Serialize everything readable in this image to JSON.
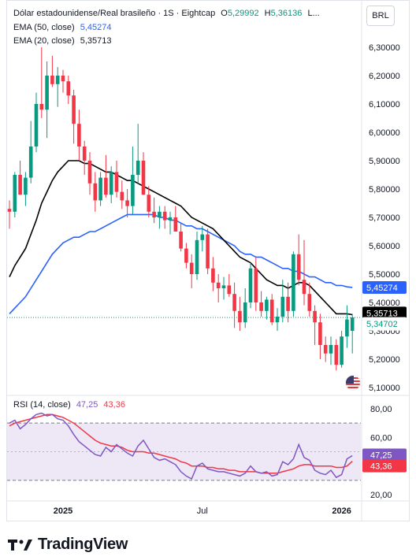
{
  "header": {
    "symbol_title": "Dólar estadounidense/Real brasileño · 1S · Eightcap",
    "open_label": "O",
    "open_value": "5,29992",
    "high_label": "H",
    "high_value": "5,36136",
    "low_label": "L..."
  },
  "currency_button": "BRL",
  "legend": {
    "ema50_label": "EMA (50, close)",
    "ema50_value": "5,45274",
    "ema20_label": "EMA (20, close)",
    "ema20_value": "5,35713",
    "rsi_label": "RSI (14, close)",
    "rsi_value": "47,25",
    "rsi_ma_value": "43,36"
  },
  "price_axis": {
    "ticks": [
      "6,30000",
      "6,20000",
      "6,10000",
      "6,00000",
      "5,90000",
      "5,80000",
      "5,70000",
      "5,60000",
      "5,50000",
      "5,40000",
      "5,30000",
      "5,20000",
      "5,10000"
    ],
    "tick_values": [
      6.3,
      6.2,
      6.1,
      6.0,
      5.9,
      5.8,
      5.7,
      5.6,
      5.5,
      5.4,
      5.3,
      5.2,
      5.1
    ],
    "labels": [
      {
        "text": "5,45274",
        "value": 5.45274,
        "color": "#2962ff",
        "text_color": "#ffffff"
      },
      {
        "text": "5,35713",
        "value": 5.35713,
        "color": "#000000",
        "text_color": "#ffffff"
      },
      {
        "text": "5,34702",
        "value": 5.34702,
        "color": "#ffffff",
        "text_color": "#089981"
      }
    ]
  },
  "rsi_axis": {
    "ticks": [
      "80,00",
      "60,00",
      "20,00"
    ],
    "tick_values": [
      80,
      60,
      20
    ],
    "labels": [
      {
        "text": "47,25",
        "value": 47.25,
        "color": "#7e57c2"
      },
      {
        "text": "43,36",
        "value": 43.36,
        "color": "#f23645"
      }
    ]
  },
  "time_axis": {
    "labels": [
      {
        "text": "2025",
        "index": 10,
        "bold": true
      },
      {
        "text": "Jul",
        "index": 36,
        "bold": false
      },
      {
        "text": "2026",
        "index": 62,
        "bold": true
      }
    ]
  },
  "colors": {
    "up": "#089981",
    "down": "#f23645",
    "ema50": "#2962ff",
    "ema20": "#000000",
    "rsi": "#7e57c2",
    "rsi_ma": "#f23645",
    "rsi_band": "#ede7f6"
  },
  "chart_data": {
    "type": "candlestick",
    "title": "Dólar estadounidense/Real brasileño · 1S · Eightcap",
    "ylim": [
      5.1,
      6.35
    ],
    "rsi_ylim": [
      15,
      85
    ],
    "rsi_bands": [
      70,
      30
    ],
    "candles": [
      {
        "o": 5.73,
        "h": 5.76,
        "l": 5.66,
        "c": 5.72
      },
      {
        "o": 5.72,
        "h": 5.86,
        "l": 5.7,
        "c": 5.85
      },
      {
        "o": 5.85,
        "h": 5.9,
        "l": 5.78,
        "c": 5.78
      },
      {
        "o": 5.78,
        "h": 5.86,
        "l": 5.74,
        "c": 5.84
      },
      {
        "o": 5.84,
        "h": 6.04,
        "l": 5.82,
        "c": 5.95
      },
      {
        "o": 5.95,
        "h": 6.14,
        "l": 5.93,
        "c": 6.1
      },
      {
        "o": 6.1,
        "h": 6.3,
        "l": 6.05,
        "c": 6.08
      },
      {
        "o": 6.08,
        "h": 6.25,
        "l": 5.98,
        "c": 6.2
      },
      {
        "o": 6.2,
        "h": 6.27,
        "l": 6.16,
        "c": 6.17
      },
      {
        "o": 6.17,
        "h": 6.23,
        "l": 6.09,
        "c": 6.2
      },
      {
        "o": 6.2,
        "h": 6.22,
        "l": 6.14,
        "c": 6.18
      },
      {
        "o": 6.18,
        "h": 6.2,
        "l": 6.1,
        "c": 6.13
      },
      {
        "o": 6.13,
        "h": 6.15,
        "l": 5.96,
        "c": 6.03
      },
      {
        "o": 6.03,
        "h": 6.08,
        "l": 5.9,
        "c": 5.95
      },
      {
        "o": 5.95,
        "h": 5.97,
        "l": 5.85,
        "c": 5.9
      },
      {
        "o": 5.9,
        "h": 5.93,
        "l": 5.78,
        "c": 5.82
      },
      {
        "o": 5.82,
        "h": 5.86,
        "l": 5.72,
        "c": 5.76
      },
      {
        "o": 5.76,
        "h": 5.86,
        "l": 5.74,
        "c": 5.84
      },
      {
        "o": 5.84,
        "h": 5.92,
        "l": 5.77,
        "c": 5.78
      },
      {
        "o": 5.78,
        "h": 5.88,
        "l": 5.75,
        "c": 5.86
      },
      {
        "o": 5.86,
        "h": 5.9,
        "l": 5.77,
        "c": 5.79
      },
      {
        "o": 5.79,
        "h": 5.83,
        "l": 5.73,
        "c": 5.76
      },
      {
        "o": 5.76,
        "h": 5.8,
        "l": 5.7,
        "c": 5.74
      },
      {
        "o": 5.74,
        "h": 5.95,
        "l": 5.71,
        "c": 5.85
      },
      {
        "o": 5.85,
        "h": 6.03,
        "l": 5.82,
        "c": 5.9
      },
      {
        "o": 5.9,
        "h": 5.93,
        "l": 5.78,
        "c": 5.78
      },
      {
        "o": 5.78,
        "h": 5.81,
        "l": 5.7,
        "c": 5.72
      },
      {
        "o": 5.72,
        "h": 5.77,
        "l": 5.68,
        "c": 5.7
      },
      {
        "o": 5.7,
        "h": 5.74,
        "l": 5.66,
        "c": 5.72
      },
      {
        "o": 5.72,
        "h": 5.74,
        "l": 5.66,
        "c": 5.69
      },
      {
        "o": 5.69,
        "h": 5.72,
        "l": 5.64,
        "c": 5.7
      },
      {
        "o": 5.7,
        "h": 5.74,
        "l": 5.66,
        "c": 5.65
      },
      {
        "o": 5.65,
        "h": 5.68,
        "l": 5.58,
        "c": 5.59
      },
      {
        "o": 5.59,
        "h": 5.61,
        "l": 5.52,
        "c": 5.54
      },
      {
        "o": 5.54,
        "h": 5.57,
        "l": 5.45,
        "c": 5.5
      },
      {
        "o": 5.5,
        "h": 5.65,
        "l": 5.48,
        "c": 5.62
      },
      {
        "o": 5.62,
        "h": 5.67,
        "l": 5.58,
        "c": 5.64
      },
      {
        "o": 5.64,
        "h": 5.66,
        "l": 5.5,
        "c": 5.52
      },
      {
        "o": 5.52,
        "h": 5.56,
        "l": 5.44,
        "c": 5.47
      },
      {
        "o": 5.47,
        "h": 5.5,
        "l": 5.4,
        "c": 5.45
      },
      {
        "o": 5.45,
        "h": 5.49,
        "l": 5.41,
        "c": 5.46
      },
      {
        "o": 5.46,
        "h": 5.5,
        "l": 5.42,
        "c": 5.43
      },
      {
        "o": 5.43,
        "h": 5.47,
        "l": 5.31,
        "c": 5.37
      },
      {
        "o": 5.37,
        "h": 5.42,
        "l": 5.3,
        "c": 5.33
      },
      {
        "o": 5.33,
        "h": 5.45,
        "l": 5.31,
        "c": 5.4
      },
      {
        "o": 5.4,
        "h": 5.54,
        "l": 5.38,
        "c": 5.52
      },
      {
        "o": 5.52,
        "h": 5.56,
        "l": 5.37,
        "c": 5.4
      },
      {
        "o": 5.4,
        "h": 5.44,
        "l": 5.35,
        "c": 5.37
      },
      {
        "o": 5.37,
        "h": 5.42,
        "l": 5.34,
        "c": 5.41
      },
      {
        "o": 5.41,
        "h": 5.43,
        "l": 5.32,
        "c": 5.33
      },
      {
        "o": 5.33,
        "h": 5.38,
        "l": 5.3,
        "c": 5.35
      },
      {
        "o": 5.35,
        "h": 5.48,
        "l": 5.33,
        "c": 5.42
      },
      {
        "o": 5.42,
        "h": 5.47,
        "l": 5.33,
        "c": 5.37
      },
      {
        "o": 5.37,
        "h": 5.58,
        "l": 5.35,
        "c": 5.57
      },
      {
        "o": 5.57,
        "h": 5.64,
        "l": 5.46,
        "c": 5.48
      },
      {
        "o": 5.48,
        "h": 5.62,
        "l": 5.39,
        "c": 5.43
      },
      {
        "o": 5.43,
        "h": 5.47,
        "l": 5.35,
        "c": 5.37
      },
      {
        "o": 5.37,
        "h": 5.39,
        "l": 5.25,
        "c": 5.33
      },
      {
        "o": 5.33,
        "h": 5.36,
        "l": 5.2,
        "c": 5.25
      },
      {
        "o": 5.25,
        "h": 5.28,
        "l": 5.19,
        "c": 5.22
      },
      {
        "o": 5.22,
        "h": 5.28,
        "l": 5.18,
        "c": 5.25
      },
      {
        "o": 5.25,
        "h": 5.27,
        "l": 5.16,
        "c": 5.18
      },
      {
        "o": 5.18,
        "h": 5.3,
        "l": 5.17,
        "c": 5.28
      },
      {
        "o": 5.28,
        "h": 5.39,
        "l": 5.24,
        "c": 5.34
      },
      {
        "o": 5.3,
        "h": 5.36,
        "l": 5.22,
        "c": 5.347
      }
    ],
    "ema50": [
      5.36,
      5.38,
      5.4,
      5.42,
      5.45,
      5.48,
      5.51,
      5.54,
      5.57,
      5.59,
      5.61,
      5.62,
      5.63,
      5.63,
      5.64,
      5.65,
      5.65,
      5.66,
      5.67,
      5.68,
      5.69,
      5.7,
      5.71,
      5.71,
      5.71,
      5.71,
      5.71,
      5.71,
      5.7,
      5.7,
      5.69,
      5.69,
      5.68,
      5.67,
      5.67,
      5.66,
      5.66,
      5.65,
      5.64,
      5.63,
      5.62,
      5.61,
      5.6,
      5.58,
      5.57,
      5.57,
      5.56,
      5.56,
      5.55,
      5.54,
      5.53,
      5.52,
      5.52,
      5.51,
      5.51,
      5.5,
      5.49,
      5.49,
      5.48,
      5.47,
      5.47,
      5.46,
      5.46,
      5.455,
      5.453
    ],
    "ema20": [
      5.49,
      5.53,
      5.56,
      5.59,
      5.64,
      5.69,
      5.75,
      5.79,
      5.83,
      5.86,
      5.88,
      5.9,
      5.9,
      5.9,
      5.89,
      5.89,
      5.88,
      5.87,
      5.86,
      5.86,
      5.85,
      5.84,
      5.83,
      5.83,
      5.82,
      5.81,
      5.8,
      5.79,
      5.78,
      5.77,
      5.76,
      5.75,
      5.74,
      5.72,
      5.7,
      5.69,
      5.68,
      5.67,
      5.66,
      5.64,
      5.62,
      5.6,
      5.58,
      5.56,
      5.55,
      5.54,
      5.52,
      5.5,
      5.48,
      5.47,
      5.46,
      5.46,
      5.45,
      5.46,
      5.47,
      5.47,
      5.46,
      5.44,
      5.42,
      5.4,
      5.38,
      5.36,
      5.36,
      5.36,
      5.357
    ],
    "rsi": [
      70,
      72,
      66,
      69,
      73,
      76,
      77,
      75,
      76,
      73,
      72,
      68,
      62,
      57,
      54,
      51,
      48,
      47,
      53,
      50,
      55,
      52,
      49,
      47,
      54,
      58,
      52,
      46,
      44,
      45,
      43,
      41,
      36,
      33,
      31,
      40,
      42,
      38,
      37,
      36,
      36,
      35,
      34,
      33,
      35,
      40,
      36,
      35,
      36,
      33,
      34,
      43,
      41,
      45,
      55,
      46,
      44,
      37,
      35,
      34,
      37,
      32,
      34,
      45,
      47.25
    ],
    "rsi_ma": [
      68,
      70,
      71,
      72,
      73,
      74,
      75,
      76,
      76,
      75,
      74,
      72,
      70,
      67,
      64,
      61,
      58,
      56,
      55,
      54,
      54,
      53,
      51,
      50,
      50,
      50,
      49,
      49,
      48,
      47,
      46,
      45,
      43,
      42,
      40,
      40,
      40,
      39,
      39,
      38,
      38,
      37,
      37,
      36,
      36,
      36,
      36,
      35,
      35,
      35,
      35,
      36,
      37,
      38,
      40,
      41,
      41,
      40,
      40,
      40,
      40,
      39,
      39,
      40,
      43.36
    ]
  }
}
